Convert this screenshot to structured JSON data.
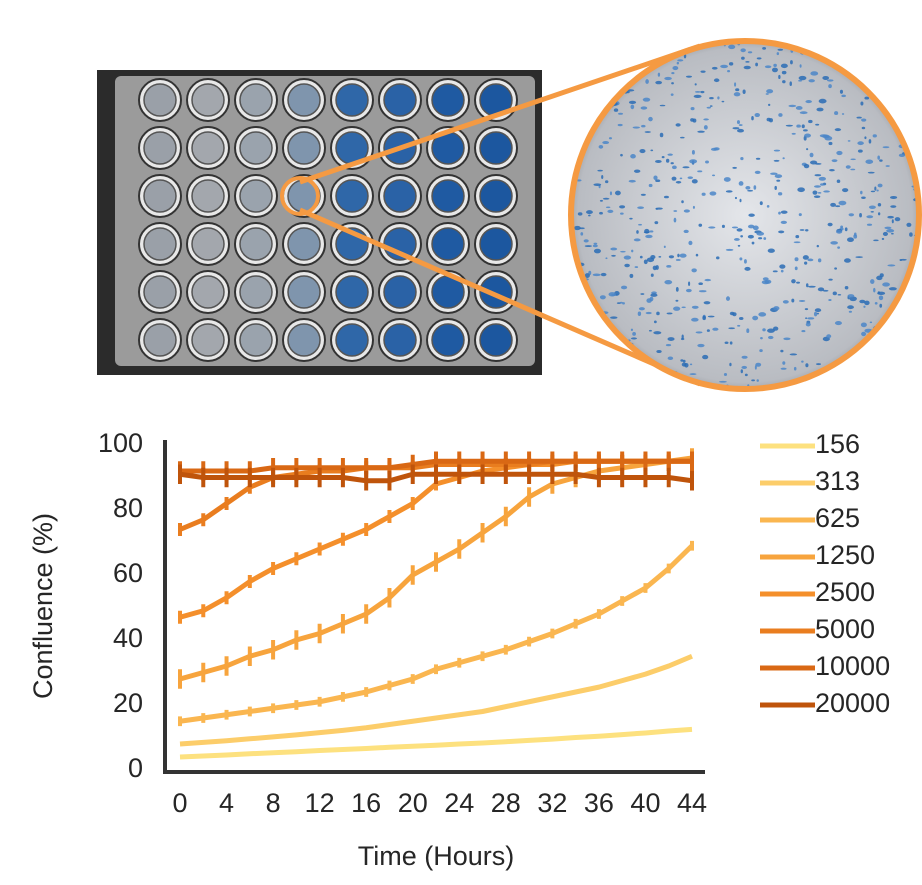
{
  "chart_data": {
    "type": "line",
    "x_label": "Time (Hours)",
    "y_label": "Confluence (%)",
    "x": [
      0,
      2,
      4,
      6,
      8,
      10,
      12,
      14,
      16,
      18,
      20,
      22,
      24,
      26,
      28,
      30,
      32,
      34,
      36,
      38,
      40,
      42,
      44
    ],
    "xlim": [
      0,
      44
    ],
    "xticks": [
      0,
      4,
      8,
      12,
      16,
      20,
      24,
      28,
      32,
      36,
      40,
      44
    ],
    "ylim": [
      0,
      100
    ],
    "yticks": [
      0,
      20,
      40,
      60,
      80,
      100
    ],
    "series": [
      {
        "name": "156",
        "color": "#fde17f",
        "values": [
          4,
          4.3,
          4.6,
          5,
          5.3,
          5.6,
          6,
          6.3,
          6.6,
          7,
          7.3,
          7.6,
          8,
          8.3,
          8.7,
          9.1,
          9.5,
          10,
          10.4,
          10.9,
          11.4,
          12,
          12.5
        ]
      },
      {
        "name": "313",
        "color": "#fccd6a",
        "values": [
          8,
          8.5,
          9,
          9.6,
          10.2,
          10.8,
          11.5,
          12.2,
          13,
          14,
          15,
          16,
          17,
          18,
          19.5,
          21,
          22.5,
          24,
          25.5,
          27.5,
          29.5,
          32,
          35
        ]
      },
      {
        "name": "625",
        "color": "#fab650",
        "values": [
          15,
          16,
          17,
          18,
          19,
          20,
          21,
          22.5,
          24,
          26,
          28,
          31,
          33,
          35,
          37,
          39.5,
          42,
          45,
          48,
          52,
          56,
          62,
          69
        ],
        "errors": [
          1.5,
          1.5,
          1.5,
          1.5,
          1.5,
          1.5,
          1.5,
          1.5,
          1.5,
          1.5,
          1.5,
          1.5,
          1.5,
          1.5,
          1.5,
          1.5,
          1.5,
          1.5,
          1.5,
          1.5,
          1.5,
          1.5,
          1.5
        ]
      },
      {
        "name": "1250",
        "color": "#f7a43d",
        "values": [
          28,
          30,
          32,
          35,
          37,
          40,
          42,
          45,
          48,
          53,
          60,
          64,
          68,
          73,
          78,
          84,
          88,
          90,
          92,
          93,
          94,
          95,
          96
        ],
        "errors": [
          3,
          3,
          3,
          3,
          3,
          3,
          3,
          3,
          3,
          3,
          3,
          3,
          3,
          3,
          3,
          3,
          3,
          3,
          3,
          3,
          3,
          3,
          3
        ]
      },
      {
        "name": "2500",
        "color": "#f48f2b",
        "values": [
          47,
          49,
          53,
          58,
          62,
          65,
          68,
          71,
          74,
          78,
          82,
          88,
          90,
          92,
          93,
          94,
          94,
          95,
          95,
          95,
          95,
          95,
          95
        ],
        "errors": [
          2,
          2,
          2,
          2,
          2,
          2,
          2,
          2,
          2,
          2,
          2,
          2,
          2,
          2,
          2,
          2,
          2,
          2,
          2,
          2,
          2,
          2,
          2
        ]
      },
      {
        "name": "5000",
        "color": "#e97d1f",
        "values": [
          74,
          77,
          82,
          87,
          90,
          91,
          92,
          92,
          93,
          93,
          93,
          94,
          94,
          94,
          94,
          94,
          95,
          95,
          95,
          95,
          95,
          95,
          95
        ],
        "errors": [
          2,
          2,
          2,
          2,
          2,
          2,
          2,
          2,
          2,
          2,
          2,
          2,
          2,
          2,
          2,
          2,
          2,
          2,
          2,
          2,
          2,
          2,
          2
        ]
      },
      {
        "name": "10000",
        "color": "#d96814",
        "values": [
          92,
          92,
          92,
          92,
          93,
          93,
          93,
          93,
          93,
          93,
          94,
          95,
          95,
          95,
          95,
          95,
          95,
          95,
          95,
          95,
          95,
          95,
          95
        ],
        "errors": [
          3,
          3,
          3,
          3,
          3,
          3,
          3,
          3,
          3,
          3,
          3,
          3,
          3,
          3,
          3,
          3,
          3,
          3,
          3,
          3,
          3,
          3,
          3
        ]
      },
      {
        "name": "20000",
        "color": "#bf540b",
        "values": [
          91,
          90,
          90,
          90,
          90,
          90,
          90,
          90,
          89,
          89,
          91,
          91,
          91,
          91,
          91,
          91,
          91,
          91,
          90,
          90,
          90,
          90,
          89
        ],
        "errors": [
          3,
          3,
          3,
          3,
          3,
          3,
          3,
          3,
          3,
          3,
          3,
          3,
          3,
          3,
          3,
          3,
          3,
          3,
          3,
          3,
          3,
          3,
          3
        ]
      }
    ]
  }
}
